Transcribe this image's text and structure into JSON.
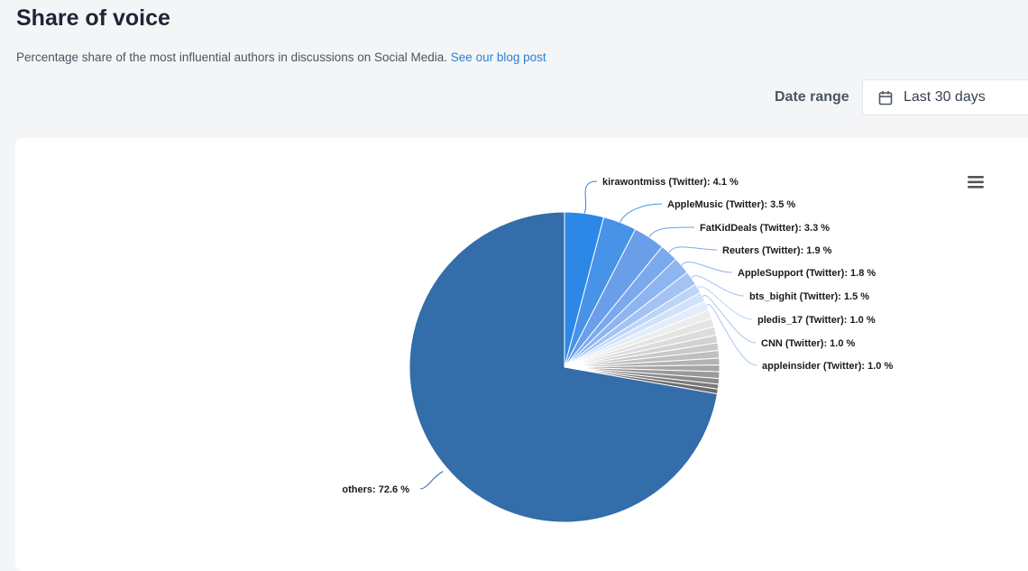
{
  "header": {
    "title": "Share of voice",
    "subtitle": "Percentage share of the most influential authors in discussions on Social Media.",
    "blog_link": "See our blog post"
  },
  "controls": {
    "date_range_label": "Date range",
    "date_range_value": "Last 30 days"
  },
  "icons": {
    "calendar": "calendar-icon",
    "menu": "hamburger-menu-icon"
  },
  "chart_data": {
    "type": "pie",
    "title": "",
    "slices": [
      {
        "name": "kirawontmiss (Twitter)",
        "value": 4.1,
        "color": "#2d87e6",
        "label": "kirawontmiss (Twitter): 4.1 %"
      },
      {
        "name": "AppleMusic (Twitter)",
        "value": 3.5,
        "color": "#4793e8",
        "label": "AppleMusic (Twitter): 3.5 %"
      },
      {
        "name": "FatKidDeals (Twitter)",
        "value": 3.3,
        "color": "#6a9ee9",
        "label": "FatKidDeals (Twitter): 3.3 %"
      },
      {
        "name": "Reuters (Twitter)",
        "value": 1.9,
        "color": "#7ba9ee",
        "label": "Reuters (Twitter): 1.9 %"
      },
      {
        "name": "AppleSupport (Twitter)",
        "value": 1.8,
        "color": "#8db5f0",
        "label": "AppleSupport (Twitter): 1.8 %"
      },
      {
        "name": "bts_bighit (Twitter)",
        "value": 1.5,
        "color": "#a3c3f4",
        "label": "bts_bighit (Twitter): 1.5 %"
      },
      {
        "name": "pledis_17 (Twitter)",
        "value": 1.0,
        "color": "#bcd4f7",
        "label": "pledis_17 (Twitter): 1.0 %"
      },
      {
        "name": "CNN (Twitter)",
        "value": 1.0,
        "color": "#d2e2fa",
        "label": "CNN (Twitter): 1.0 %"
      },
      {
        "name": "appleinsider (Twitter)",
        "value": 1.0,
        "color": "#e3ecfb",
        "label": "appleinsider (Twitter): 1.0 %"
      },
      {
        "name": "",
        "value": 0.9,
        "color": "#ececec"
      },
      {
        "name": "",
        "value": 0.9,
        "color": "#e4e4e4"
      },
      {
        "name": "",
        "value": 0.9,
        "color": "#dcdcdc"
      },
      {
        "name": "",
        "value": 0.8,
        "color": "#d2d2d2"
      },
      {
        "name": "",
        "value": 0.8,
        "color": "#c9c9c9"
      },
      {
        "name": "",
        "value": 0.8,
        "color": "#bfbfbf"
      },
      {
        "name": "",
        "value": 0.7,
        "color": "#b3b3b3"
      },
      {
        "name": "",
        "value": 0.7,
        "color": "#a6a6a6"
      },
      {
        "name": "",
        "value": 0.7,
        "color": "#999999"
      },
      {
        "name": "",
        "value": 0.6,
        "color": "#8a8a8a"
      },
      {
        "name": "",
        "value": 0.5,
        "color": "#7a7a7a"
      },
      {
        "name": "",
        "value": 0.5,
        "color": "#6b6b6b"
      },
      {
        "name": "others",
        "value": 72.6,
        "color": "#336daa",
        "label": "others: 72.6 %"
      }
    ]
  }
}
